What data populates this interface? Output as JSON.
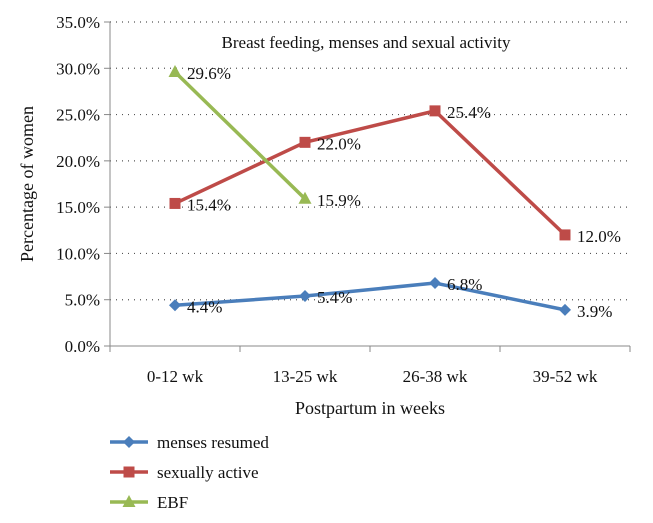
{
  "chart_data": {
    "type": "line",
    "title": "Breast feeding, menses and sexual activity",
    "xlabel": "Postpartum in weeks",
    "ylabel": "Percentage of women",
    "categories": [
      "0-12 wk",
      "13-25 wk",
      "26-38 wk",
      "39-52 wk"
    ],
    "ylim": [
      0,
      35
    ],
    "yticks": [
      0,
      5,
      10,
      15,
      20,
      25,
      30,
      35
    ],
    "ytick_labels": [
      "0.0%",
      "5.0%",
      "10.0%",
      "15.0%",
      "20.0%",
      "25.0%",
      "30.0%",
      "35.0%"
    ],
    "grid": "horizontal-dotted",
    "legend_position": "bottom-left",
    "series": [
      {
        "name": "menses resumed",
        "color": "#4a7ebb",
        "marker": "diamond",
        "values": [
          4.4,
          5.4,
          6.8,
          3.9
        ],
        "labels": [
          "4.4%",
          "5.4%",
          "6.8%",
          "3.9%"
        ]
      },
      {
        "name": "sexually active",
        "color": "#be4b48",
        "marker": "square",
        "values": [
          15.4,
          22.0,
          25.4,
          12.0
        ],
        "labels": [
          "15.4%",
          "22.0%",
          "25.4%",
          "12.0%"
        ]
      },
      {
        "name": "EBF",
        "color": "#98b954",
        "marker": "triangle",
        "values": [
          29.6,
          15.9,
          null,
          null
        ],
        "labels": [
          "29.6%",
          "15.9%",
          null,
          null
        ]
      }
    ]
  }
}
